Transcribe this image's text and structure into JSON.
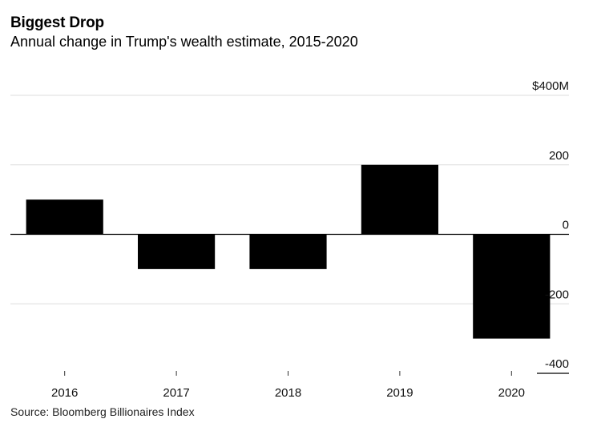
{
  "header": {
    "title": "Biggest Drop",
    "subtitle": "Annual change in Trump's wealth estimate, 2015-2020"
  },
  "footer": {
    "source": "Source: Bloomberg Billionaires Index"
  },
  "chart_data": {
    "type": "bar",
    "title": "Biggest Drop",
    "subtitle": "Annual change in Trump's wealth estimate, 2015-2020",
    "categories": [
      "2016",
      "2017",
      "2018",
      "2019",
      "2020"
    ],
    "values": [
      100,
      -100,
      -100,
      200,
      -300
    ],
    "ylim": [
      -400,
      400
    ],
    "yticks": [
      400,
      200,
      0,
      -200,
      -400
    ],
    "ytick_labels": [
      "$400M",
      "200",
      "0",
      "-200",
      "-400"
    ],
    "xlabel": "",
    "ylabel": "",
    "grid": true,
    "axis_position": "right",
    "colors": {
      "bar": "#000000",
      "grid": "#dddddd",
      "zero_line": "#000000"
    }
  }
}
